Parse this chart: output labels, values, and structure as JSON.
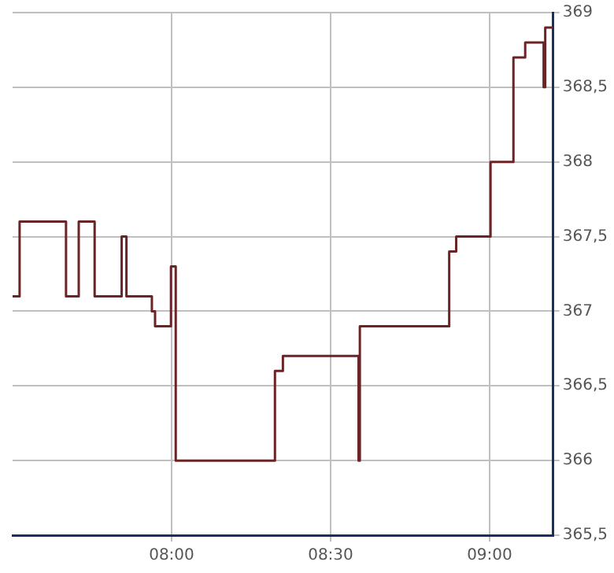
{
  "chart_data": {
    "type": "step",
    "x": [
      7.5,
      7.522,
      7.668,
      7.708,
      7.758,
      7.843,
      7.858,
      7.938,
      7.948,
      7.998,
      8.013,
      8.325,
      8.35,
      8.588,
      8.592,
      8.873,
      8.895,
      9.003,
      9.075,
      9.112,
      9.17,
      9.175,
      9.2
    ],
    "series": [
      {
        "color": "#6b2326",
        "values": [
          367.1,
          367.6,
          367.1,
          367.6,
          367.1,
          367.5,
          367.1,
          367.0,
          366.9,
          367.3,
          366.0,
          366.6,
          366.7,
          366.0,
          366.9,
          367.4,
          367.5,
          368.0,
          368.7,
          368.8,
          368.5,
          368.9,
          368.9
        ]
      }
    ],
    "xlim": [
      7.5,
      9.2
    ],
    "xticks": [
      {
        "value": 8,
        "label": "08:00"
      },
      {
        "value": 8.5,
        "label": "08:30"
      },
      {
        "value": 9,
        "label": "09:00"
      }
    ],
    "ylim": [
      365.5,
      369
    ],
    "yticks": [
      {
        "value": 365.5,
        "label": "365,5"
      },
      {
        "value": 366,
        "label": "366"
      },
      {
        "value": 366.5,
        "label": "366,5"
      },
      {
        "value": 367,
        "label": "367"
      },
      {
        "value": 367.5,
        "label": "367,5"
      },
      {
        "value": 368,
        "label": "368"
      },
      {
        "value": 368.5,
        "label": "368,5"
      },
      {
        "value": 369,
        "label": "369"
      }
    ],
    "grid": true,
    "legend": false
  }
}
